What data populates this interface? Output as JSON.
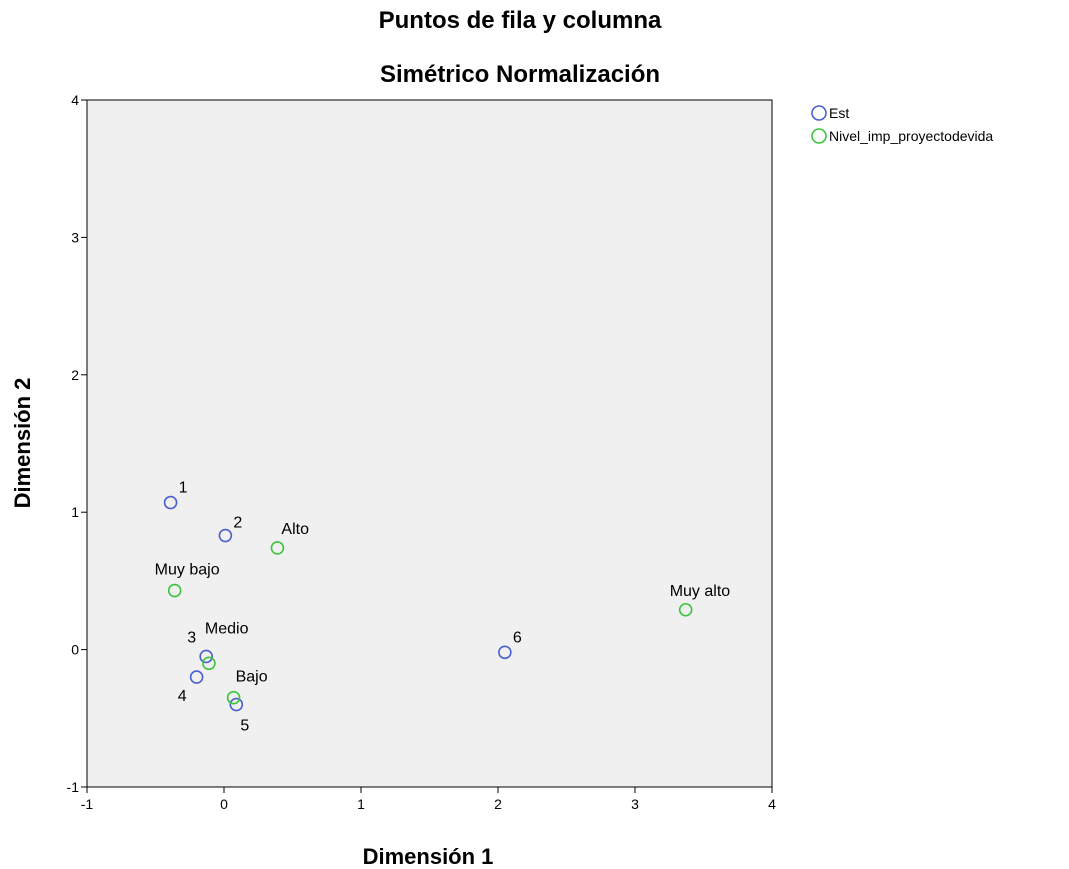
{
  "chart_data": {
    "type": "scatter",
    "title": "Puntos de fila y columna",
    "subtitle": "Simétrico Normalización",
    "xlabel": "Dimensión 1",
    "ylabel": "Dimensión 2",
    "xlim": [
      -1,
      4
    ],
    "ylim": [
      -1,
      4
    ],
    "xticks": [
      -1,
      0,
      1,
      2,
      3,
      4
    ],
    "yticks": [
      -1,
      0,
      1,
      2,
      3,
      4
    ],
    "grid": false,
    "legend_position": "right-top",
    "series": [
      {
        "name": "Est",
        "color": "#4a5fd0",
        "points": [
          {
            "label": "1",
            "x": -0.39,
            "y": 1.07
          },
          {
            "label": "2",
            "x": 0.01,
            "y": 0.83
          },
          {
            "label": "3",
            "x": -0.13,
            "y": -0.05
          },
          {
            "label": "4",
            "x": -0.2,
            "y": -0.2
          },
          {
            "label": "5",
            "x": 0.09,
            "y": -0.4
          },
          {
            "label": "6",
            "x": 2.05,
            "y": -0.02
          }
        ]
      },
      {
        "name": "Nivel_imp_proyectodevida",
        "color": "#3cc43c",
        "points": [
          {
            "label": "Alto",
            "x": 0.39,
            "y": 0.74
          },
          {
            "label": "Muy bajo",
            "x": -0.36,
            "y": 0.43
          },
          {
            "label": "Medio",
            "x": -0.11,
            "y": -0.1
          },
          {
            "label": "Bajo",
            "x": 0.07,
            "y": -0.35
          },
          {
            "label": "Muy alto",
            "x": 3.37,
            "y": 0.29
          }
        ]
      }
    ]
  }
}
